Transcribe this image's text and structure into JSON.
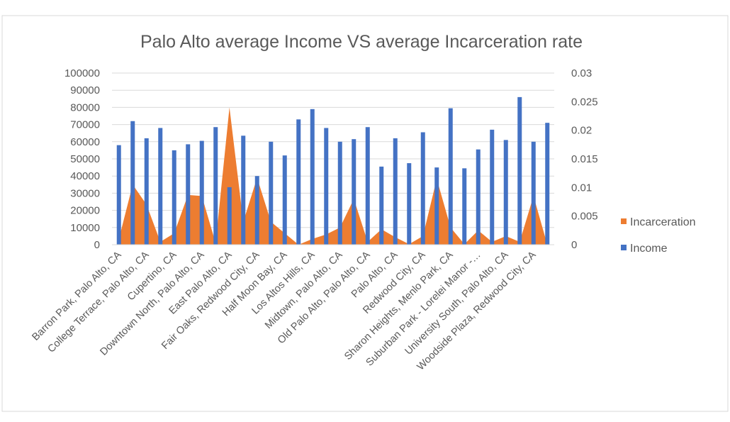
{
  "chart_data": {
    "type": "bar",
    "title": "Palo Alto average Income VS average Incarceration rate",
    "categories": [
      "Barron Park, Palo Alto, CA",
      "",
      "College Terrace, Palo Alto, CA",
      "",
      "Cupertino, CA",
      "",
      "Downtown North, Palo Alto, CA",
      "",
      "East Palo Alto, CA",
      "",
      "Fair Oaks, Redwood City, CA",
      "",
      "Half Moon Bay, CA",
      "",
      "Los Altos Hills, CA",
      "",
      "Midtown, Palo Alto, CA",
      "",
      "Old Palo Alto, Palo Alto, CA",
      "",
      "Palo Alto, CA",
      "",
      "Redwood City, CA",
      "",
      "Sharon Heights, Menlo Park, CA",
      "",
      "Suburban Park - Lorelei Manor -…",
      "",
      "University South, Palo Alto, CA",
      "",
      "Woodside Plaza, Redwood City, CA",
      ""
    ],
    "series": [
      {
        "name": "Incarceration",
        "type": "area",
        "axis": "secondary",
        "color": "#ED7D31",
        "values": [
          0.001,
          0.0105,
          0.007,
          0.0005,
          0.002,
          0.0087,
          0.0085,
          0.0003,
          0.024,
          0.004,
          0.0117,
          0.004,
          0.002,
          0,
          0.001,
          0.0018,
          0.003,
          0.008,
          0.0005,
          0.0027,
          0.0013,
          0.0001,
          0.0015,
          0.0115,
          0.003,
          0.0001,
          0.0025,
          0.0005,
          0.0015,
          0.0005,
          0.0085,
          0
        ]
      },
      {
        "name": "Income",
        "type": "bar",
        "axis": "primary",
        "color": "#4472C4",
        "values": [
          58000,
          72000,
          62000,
          68000,
          55000,
          58500,
          60500,
          68500,
          33500,
          63500,
          40000,
          60000,
          52000,
          73000,
          79000,
          68000,
          60000,
          61500,
          68500,
          45500,
          62000,
          47500,
          65500,
          45000,
          79500,
          44500,
          55500,
          67000,
          61000,
          86000,
          60000,
          71000
        ]
      }
    ],
    "y_axis": {
      "min": 0,
      "max": 100000,
      "ticks": [
        "0",
        "10000",
        "20000",
        "30000",
        "40000",
        "50000",
        "60000",
        "70000",
        "80000",
        "90000",
        "100000"
      ]
    },
    "y2_axis": {
      "min": 0,
      "max": 0.03,
      "ticks": [
        "0",
        "0.005",
        "0.01",
        "0.015",
        "0.02",
        "0.025",
        "0.03"
      ]
    },
    "grid": true,
    "legend": "right",
    "legend_entries": [
      "Incarceration",
      "Income"
    ],
    "xlabel": "",
    "ylabel": ""
  }
}
